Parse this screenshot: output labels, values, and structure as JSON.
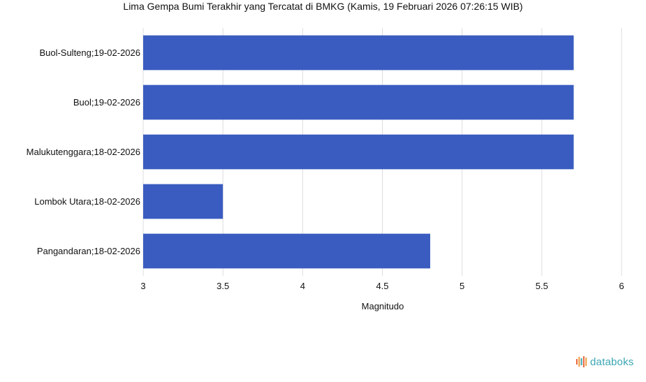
{
  "colors": {
    "bar": "#3a5cc0",
    "grid": "#dddddd",
    "brand": "#3aa6b4",
    "brand_bars": [
      "#e8663d",
      "#f09a3e",
      "#3aa6b4"
    ]
  },
  "brand": {
    "name": "databoks",
    "icon": "databoks-logo-icon"
  },
  "chart_data": {
    "type": "bar",
    "orientation": "horizontal",
    "title": "Lima Gempa Bumi Terakhir yang Tercatat di BMKG (Kamis, 19 Februari 2026 07:26:15 WIB)",
    "xlabel": "Magnitudo",
    "ylabel": "",
    "xlim": [
      3,
      6
    ],
    "xticks": [
      "3",
      "3.5",
      "4",
      "4.5",
      "5",
      "5.5",
      "6"
    ],
    "grid": true,
    "legend": "none",
    "categories": [
      "Buol-Sulteng;19-02-2026",
      "Buol;19-02-2026",
      "Malukutenggara;18-02-2026",
      "Lombok Utara;18-02-2026",
      "Pangandaran;18-02-2026"
    ],
    "values": [
      5.7,
      5.7,
      5.7,
      3.5,
      4.8
    ]
  }
}
